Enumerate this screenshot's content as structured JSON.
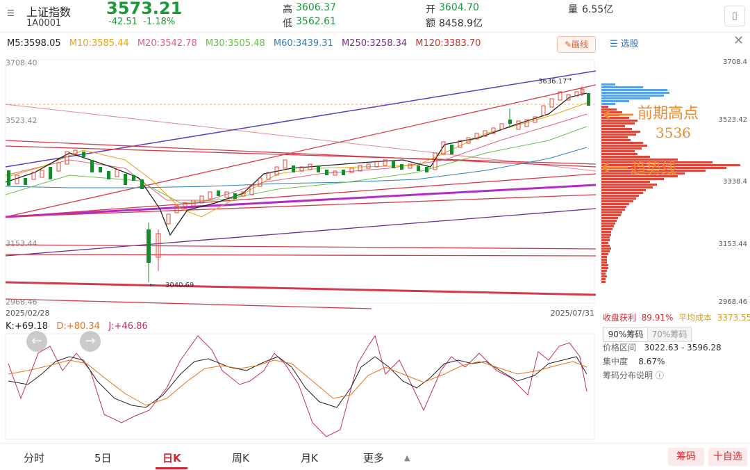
{
  "header": {
    "index_name": "上证指数",
    "code": "1A0001",
    "price": "3573.21",
    "change": "-42.51",
    "change_pct": "-1.18%",
    "high_label": "高",
    "high": "3606.37",
    "low_label": "低",
    "low": "3562.61",
    "open_label": "开",
    "open": "3604.70",
    "amount_label": "额",
    "amount": "8458.9亿",
    "volume_label": "量",
    "volume": "6.55亿"
  },
  "ma": {
    "m5": "M5:3598.05",
    "m10": "M10:3585.44",
    "m20": "M20:3542.78",
    "m30": "M30:3505.48",
    "m60": "M60:3439.31",
    "m250": "M250:3258.34",
    "m120": "M120:3383.70",
    "colors": {
      "m5": "#222222",
      "m10": "#e8a317",
      "m20": "#e0607e",
      "m30": "#6abf4b",
      "m60": "#2f7fc1",
      "m250": "#7b2d8e",
      "m120": "#c0392b"
    }
  },
  "draw_button": "画线",
  "chart": {
    "y_top": "3708.40",
    "y_mid1": "3523.42",
    "y_mid2": "3153.44",
    "y_bottom": "2968.46",
    "high_marker": "3636.17",
    "low_marker": "3040.69",
    "date_start": "2025/02/28",
    "date_end": "2025/07/31"
  },
  "chip_axis": {
    "top": "3708.4",
    "mid1": "3523.42",
    "mid2": "3338.4",
    "mid3": "3153.44",
    "bottom": "2968.46"
  },
  "kdj": {
    "k": "K:+69.18",
    "d": "D:+80.34",
    "j": "J:+46.86"
  },
  "side": {
    "select_label": "选股",
    "profit_label": "收盘获利",
    "profit_value": "89.91%",
    "avg_cost_label": "平均成本",
    "avg_cost_value": "3373.55",
    "tab_90": "90%筹码",
    "tab_70": "70%筹码",
    "range_label": "价格区间",
    "range_value": "3022.63 - 3596.28",
    "conc_label": "集中度",
    "conc_value": "8.67%",
    "explain_label": "筹码分布说明"
  },
  "annotations": {
    "note1": "前期高点",
    "note2": "3536",
    "note3": "趋势线"
  },
  "bottom_tabs": {
    "t1": "分时",
    "t2": "5日",
    "t3": "日K",
    "t4": "周K",
    "t5": "月K",
    "t6": "更多"
  },
  "buttons": {
    "chips": "筹码",
    "add": "十自选"
  }
}
